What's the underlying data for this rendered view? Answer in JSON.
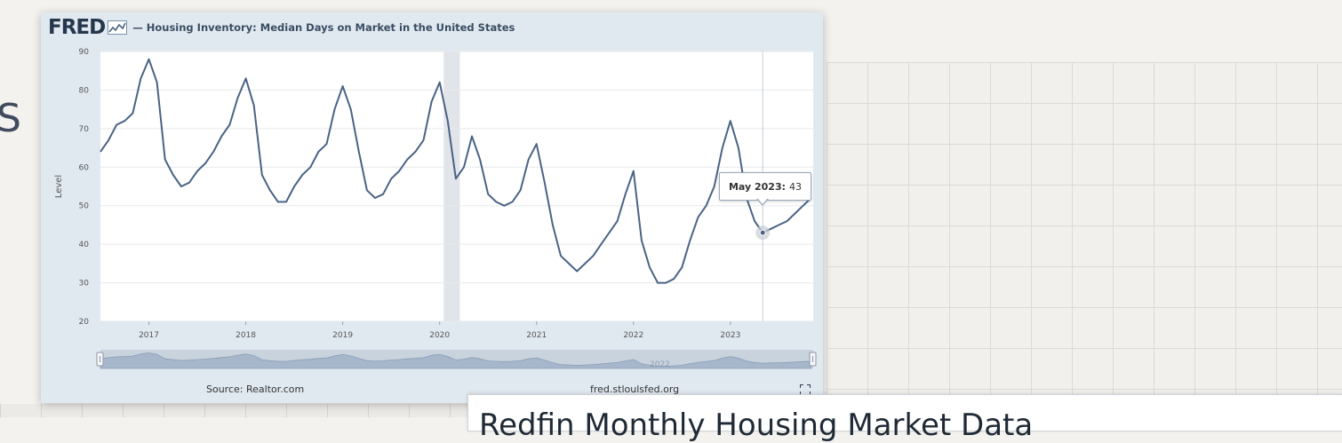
{
  "header": {
    "logo_text": "FRED",
    "series_title": "— Housing Inventory: Median Days on Market in the United States"
  },
  "background": {
    "partial_letter": "S",
    "bottom_title": "Redfin Monthly Housing Market Data"
  },
  "footer": {
    "source": "Source: Realtor.com",
    "url": "fred.stloulsfed.org"
  },
  "tooltip": {
    "label": "May 2023:",
    "value": "43"
  },
  "navigator": {
    "watermark": "2022"
  },
  "colors": {
    "line": "#4a6384",
    "card_bg": "#e1e9f0",
    "recession": "#e1e4e8",
    "navigator_fill": "#a7b7cb"
  },
  "icons": {
    "logo_chart": "line-chart-icon",
    "expand": "fullscreen-icon"
  },
  "chart_data": {
    "type": "line",
    "title": "Housing Inventory: Median Days on Market in the United States",
    "xlabel": "",
    "ylabel": "Level",
    "ylim": [
      20,
      90
    ],
    "yticks": [
      20,
      30,
      40,
      50,
      60,
      70,
      80,
      90
    ],
    "xticks": [
      "2017",
      "2018",
      "2019",
      "2020",
      "2021",
      "2022",
      "2023"
    ],
    "grid": true,
    "recession_shading": [
      "2020-02",
      "2020-04"
    ],
    "highlight": {
      "x": "2023-05",
      "y": 43
    },
    "series": [
      {
        "x": [
          "2016-07",
          "2016-08",
          "2016-09",
          "2016-10",
          "2016-11",
          "2016-12",
          "2017-01",
          "2017-02",
          "2017-03",
          "2017-04",
          "2017-05",
          "2017-06",
          "2017-07",
          "2017-08",
          "2017-09",
          "2017-10",
          "2017-11",
          "2017-12",
          "2018-01",
          "2018-02",
          "2018-03",
          "2018-04",
          "2018-05",
          "2018-06",
          "2018-07",
          "2018-08",
          "2018-09",
          "2018-10",
          "2018-11",
          "2018-12",
          "2019-01",
          "2019-02",
          "2019-03",
          "2019-04",
          "2019-05",
          "2019-06",
          "2019-07",
          "2019-08",
          "2019-09",
          "2019-10",
          "2019-11",
          "2019-12",
          "2020-01",
          "2020-02",
          "2020-03",
          "2020-04",
          "2020-05",
          "2020-06",
          "2020-07",
          "2020-08",
          "2020-09",
          "2020-10",
          "2020-11",
          "2020-12",
          "2021-01",
          "2021-02",
          "2021-03",
          "2021-04",
          "2021-05",
          "2021-06",
          "2021-07",
          "2021-08",
          "2021-09",
          "2021-10",
          "2021-11",
          "2021-12",
          "2022-01",
          "2022-02",
          "2022-03",
          "2022-04",
          "2022-05",
          "2022-06",
          "2022-07",
          "2022-08",
          "2022-09",
          "2022-10",
          "2022-11",
          "2022-12",
          "2023-01",
          "2023-02",
          "2023-03",
          "2023-04",
          "2023-05",
          "2023-06",
          "2023-07",
          "2023-08",
          "2023-09",
          "2023-10",
          "2023-11"
        ],
        "values": [
          64,
          67,
          71,
          72,
          74,
          83,
          88,
          82,
          62,
          58,
          55,
          56,
          59,
          61,
          64,
          68,
          71,
          78,
          83,
          76,
          58,
          54,
          51,
          51,
          55,
          58,
          60,
          64,
          66,
          75,
          81,
          75,
          64,
          54,
          52,
          53,
          57,
          59,
          62,
          64,
          67,
          77,
          82,
          72,
          57,
          60,
          68,
          62,
          53,
          51,
          50,
          51,
          54,
          62,
          66,
          56,
          45,
          37,
          35,
          33,
          35,
          37,
          40,
          43,
          46,
          53,
          59,
          41,
          34,
          30,
          30,
          31,
          34,
          41,
          47,
          50,
          55,
          65,
          72,
          65,
          52,
          46,
          43,
          44,
          45,
          46,
          48,
          50,
          52
        ]
      }
    ]
  }
}
